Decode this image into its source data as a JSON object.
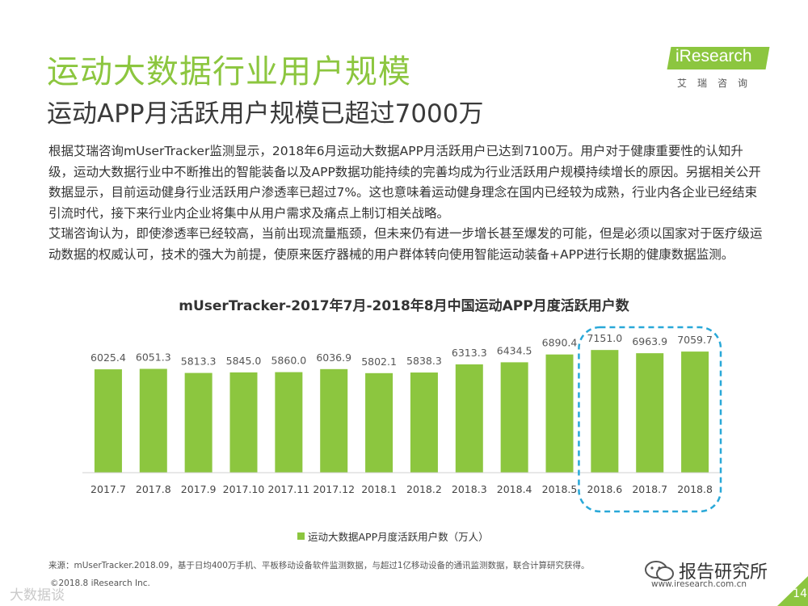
{
  "header": {
    "title": "运动大数据行业用户规模",
    "subtitle": "运动APP月活跃用户规模已超过7000万"
  },
  "logo": {
    "brand": "iResearch",
    "chinese": "艾瑞咨询"
  },
  "body": {
    "paragraph1": "根据艾瑞咨询mUserTracker监测显示，2018年6月运动大数据APP月活跃用户已达到7100万。用户对于健康重要性的认知升级，运动大数据行业中不断推出的智能装备以及APP数据功能持续的完善均成为行业活跃用户规模持续增长的原因。另据相关公开数据显示，目前运动健身行业活跃用户渗透率已超过7%。这也意味着运动健身理念在国内已经较为成熟，行业内各企业已经结束引流时代，接下来行业内企业将集中从用户需求及痛点上制订相关战略。",
    "paragraph2": "艾瑞咨询认为，即使渗透率已经较高，当前出现流量瓶颈，但未来仍有进一步增长甚至爆发的可能，但是必须以国家对于医疗级运动数据的权威认可，技术的强大为前提，使原来医疗器械的用户群体转向使用智能运动装备+APP进行长期的健康数据监测。"
  },
  "chart_data": {
    "type": "bar",
    "title": "mUserTracker-2017年7月-2018年8月中国运动APP月度活跃用户数",
    "categories": [
      "2017.7",
      "2017.8",
      "2017.9",
      "2017.10",
      "2017.11",
      "2017.12",
      "2018.1",
      "2018.2",
      "2018.3",
      "2018.4",
      "2018.5",
      "2018.6",
      "2018.7",
      "2018.8"
    ],
    "values": [
      6025.4,
      6051.3,
      5813.3,
      5845.0,
      5860.0,
      6036.9,
      5802.1,
      5838.3,
      6313.3,
      6434.5,
      6890.4,
      7151.0,
      6963.9,
      7059.7
    ],
    "value_labels": [
      "6025.4",
      "6051.3",
      "5813.3",
      "5845.0",
      "5860.0",
      "6036.9",
      "5802.1",
      "5838.3",
      "6313.3",
      "6434.5",
      "6890.4",
      "7151.0",
      "6963.9",
      "7059.7"
    ],
    "series_name": "运动大数据APP月度活跃用户数（万人）",
    "unit": "万人",
    "color": "#8cc63f",
    "highlight_color": "#29a8d8",
    "highlight_categories": [
      "2018.6",
      "2018.7",
      "2018.8"
    ],
    "legend_position": "bottom",
    "ylim": [
      0,
      7300
    ],
    "grid": false
  },
  "footer": {
    "source": "来源：mUserTracker.2018.09，基于日均400万手机、平板移动设备软件监测数据，与超过1亿移动设备的通讯监测数据，联合计算研究获得。",
    "copyright": "©2018.8 iResearch Inc.",
    "url": "www.iresearch.com.cn",
    "page_number": "14"
  },
  "watermarks": {
    "left": "大数据谈",
    "right": "报告研究所"
  },
  "colors": {
    "accent": "#8cc63f",
    "text": "#333333",
    "highlight": "#29a8d8"
  }
}
